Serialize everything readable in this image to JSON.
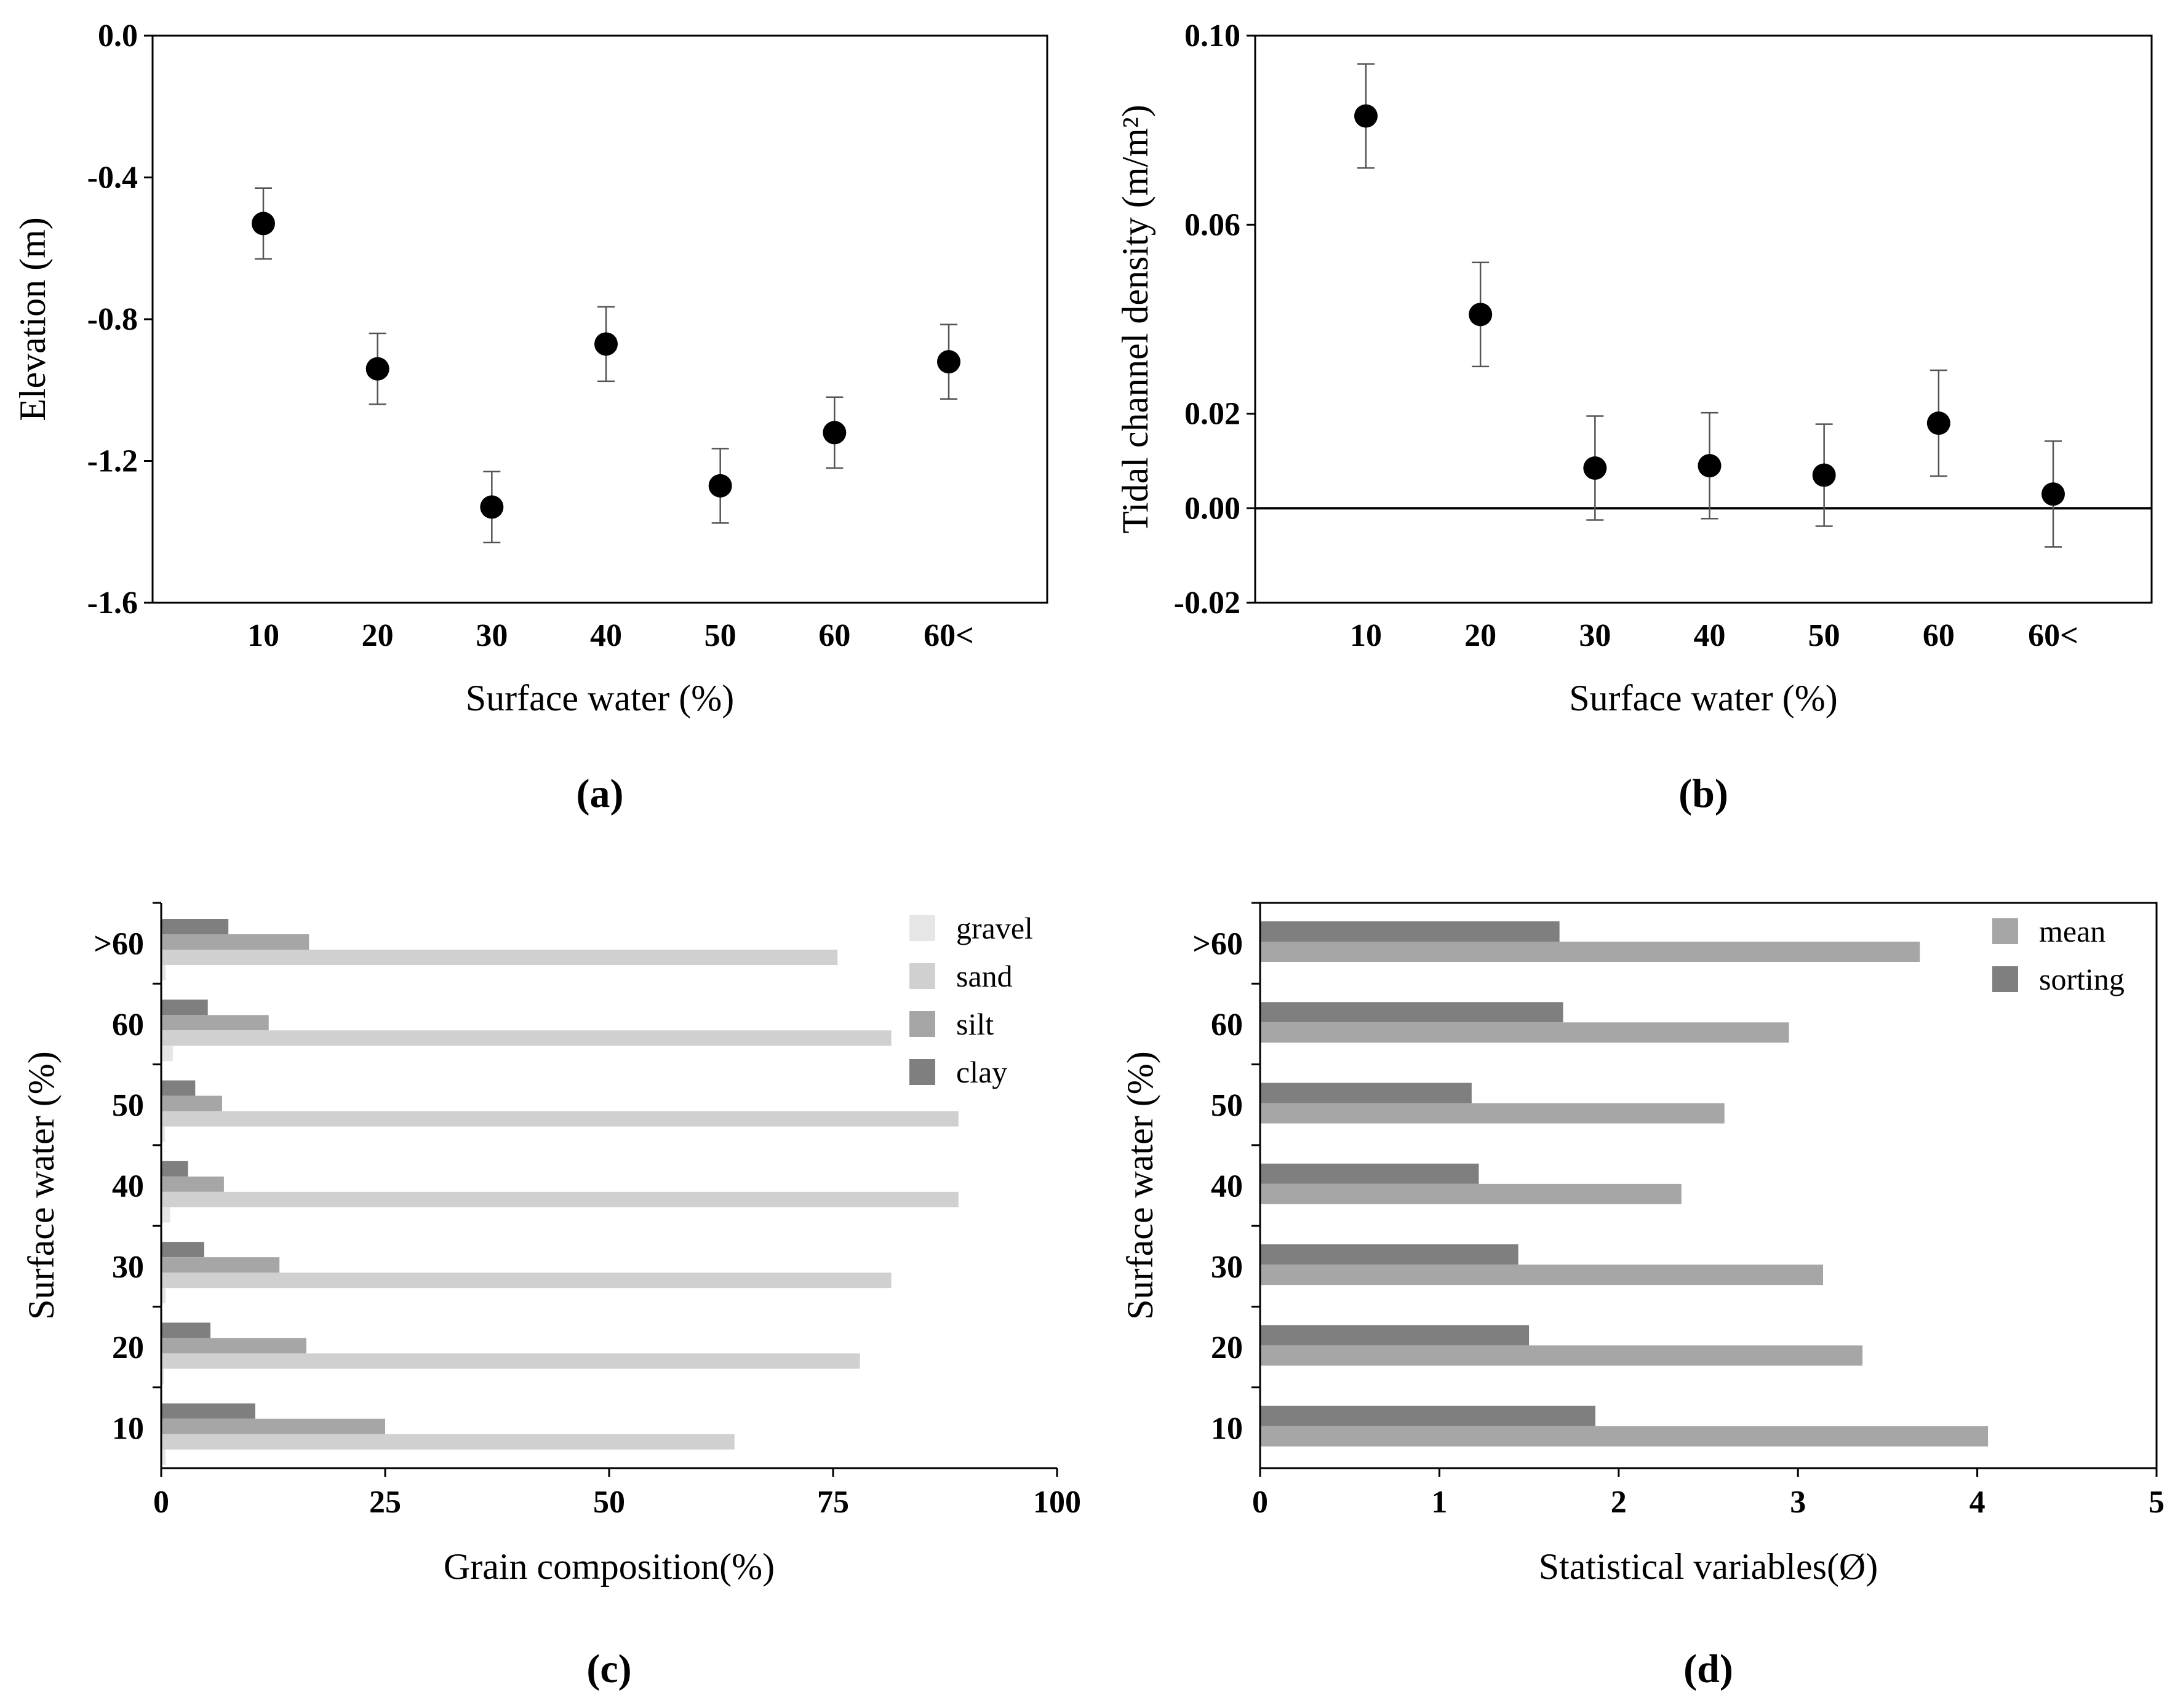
{
  "chart_data": [
    {
      "id": "a",
      "type": "scatter",
      "panel_label": "(a)",
      "xlabel": "Surface water (%)",
      "ylabel": "Elevation (m)",
      "categories": [
        "10",
        "20",
        "30",
        "40",
        "50",
        "60",
        "60<"
      ],
      "values": [
        -0.53,
        -0.94,
        -1.33,
        -0.87,
        -1.27,
        -1.12,
        -0.92
      ],
      "errors": [
        0.1,
        0.1,
        0.1,
        0.105,
        0.105,
        0.1,
        0.105
      ],
      "yticks": [
        "0.0",
        "-0.4",
        "-0.8",
        "-1.2",
        "-1.6"
      ],
      "ytick_values": [
        0.0,
        -0.4,
        -0.8,
        -1.2,
        -1.6
      ],
      "ylim": [
        -1.6,
        0.0
      ]
    },
    {
      "id": "b",
      "type": "scatter",
      "panel_label": "(b)",
      "xlabel": "Surface water (%)",
      "ylabel": "Tidal channel density (m/m²)",
      "categories": [
        "10",
        "20",
        "30",
        "40",
        "50",
        "60",
        "60<"
      ],
      "values": [
        0.083,
        0.041,
        0.0085,
        0.009,
        0.007,
        0.018,
        0.003
      ],
      "errors": [
        0.011,
        0.011,
        0.011,
        0.0112,
        0.0108,
        0.0112,
        0.0112
      ],
      "yticks": [
        "0.10",
        "0.06",
        "0.02",
        "0.00",
        "-0.02"
      ],
      "ytick_values": [
        0.1,
        0.06,
        0.02,
        0.0,
        -0.02
      ],
      "ylim": [
        -0.02,
        0.1
      ],
      "reference_line": 0.0
    },
    {
      "id": "c",
      "type": "bar",
      "orientation": "horizontal",
      "panel_label": "(c)",
      "xlabel": "Grain composition(%)",
      "ylabel": "Surface water (%)",
      "categories": [
        "10",
        "20",
        "30",
        "40",
        "50",
        "60",
        ">60"
      ],
      "series": [
        {
          "name": "clay",
          "color": "#7f7f7f",
          "values": [
            10.5,
            5.5,
            4.8,
            3.0,
            3.8,
            5.2,
            7.5
          ]
        },
        {
          "name": "silt",
          "color": "#a6a6a6",
          "values": [
            25.0,
            16.2,
            13.2,
            7.0,
            6.8,
            12.0,
            16.5
          ]
        },
        {
          "name": "sand",
          "color": "#d0d0d0",
          "values": [
            64.0,
            78.0,
            81.5,
            89.0,
            89.0,
            81.5,
            75.5
          ]
        },
        {
          "name": "gravel",
          "color": "#e6e6e6",
          "values": [
            0.5,
            0.3,
            0.5,
            1.0,
            0.4,
            1.3,
            0.5
          ]
        }
      ],
      "legend_order": [
        "gravel",
        "sand",
        "silt",
        "clay"
      ],
      "xticks": [
        "0",
        "25",
        "50",
        "75",
        "100"
      ],
      "xtick_values": [
        0,
        25,
        50,
        75,
        100
      ],
      "xlim": [
        0,
        100
      ],
      "legend_position": "top-right"
    },
    {
      "id": "d",
      "type": "bar",
      "orientation": "horizontal",
      "panel_label": "(d)",
      "xlabel": "Statistical variables(Ø)",
      "ylabel": "Surface water (%)",
      "categories": [
        "10",
        "20",
        "30",
        "40",
        "50",
        "60",
        ">60"
      ],
      "series": [
        {
          "name": "sorting",
          "color": "#7f7f7f",
          "values": [
            1.87,
            1.5,
            1.44,
            1.22,
            1.18,
            1.69,
            1.67
          ]
        },
        {
          "name": "mean",
          "color": "#a6a6a6",
          "values": [
            4.06,
            3.36,
            3.14,
            2.35,
            2.59,
            2.95,
            3.68
          ]
        }
      ],
      "legend_order": [
        "mean",
        "sorting"
      ],
      "xticks": [
        "0",
        "1",
        "2",
        "3",
        "4",
        "5"
      ],
      "xtick_values": [
        0,
        1,
        2,
        3,
        4,
        5
      ],
      "xlim": [
        0,
        5
      ],
      "legend_position": "top-right"
    }
  ]
}
